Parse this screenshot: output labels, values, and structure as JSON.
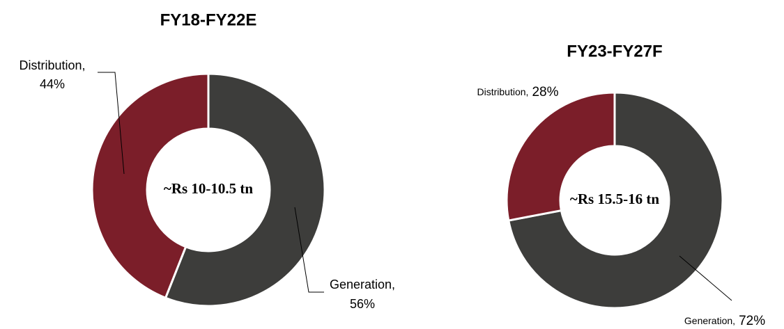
{
  "chart_data": [
    {
      "type": "donut",
      "title": "FY18-FY22E",
      "center_text": "~Rs 10-10.5 tn",
      "categories": [
        "Generation,",
        "Distribution,"
      ],
      "values": [
        56,
        44
      ],
      "value_labels": [
        "56%",
        "44%"
      ],
      "colors": [
        "#3d3d3b",
        "#7b1e29"
      ]
    },
    {
      "type": "donut",
      "title": "FY23-FY27F",
      "center_text": "~Rs 15.5-16 tn",
      "categories": [
        "Generation,",
        "Distribution,"
      ],
      "values": [
        72,
        28
      ],
      "value_labels": [
        "72%",
        "28%"
      ],
      "colors": [
        "#3d3d3b",
        "#7b1e29"
      ]
    }
  ]
}
